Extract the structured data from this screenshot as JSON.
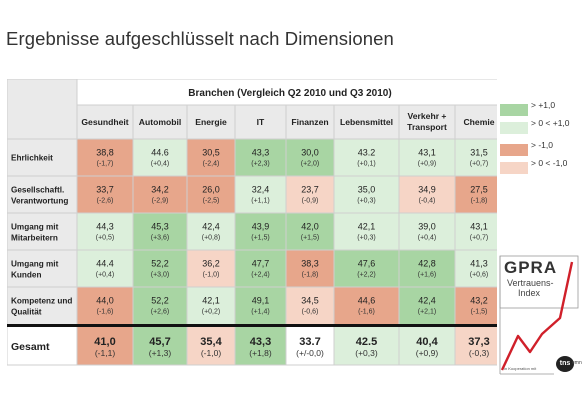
{
  "title": "Ergebnisse aufgeschlüsselt nach Dimensionen",
  "header_group": "Branchen (Vergleich Q2 2010 und Q3 2010)",
  "colors": {
    "strong_positive": "#a8d5a3",
    "mild_positive": "#dcefdb",
    "strong_negative": "#e7a68b",
    "mild_negative": "#f6d5c6",
    "neutral": "#ffffff",
    "header_bg": "#eaeaea"
  },
  "chart_data": {
    "type": "table",
    "columns": [
      "Gesundheit",
      "Automobil",
      "Energie",
      "IT",
      "Finanzen",
      "Lebensmittel",
      "Verkehr + Transport",
      "Chemie"
    ],
    "rows": [
      {
        "label": "Ehrlichkeit",
        "values": [
          "38,8",
          "44.6",
          "30,5",
          "43,3",
          "30,0",
          "43.2",
          "43,1",
          "31,5"
        ],
        "changes": [
          "(-1,7)",
          "(+0,4)",
          "(-2,4)",
          "(+2,3)",
          "(+2,0)",
          "(+0,1)",
          "(+0,9)",
          "(+0,7)"
        ],
        "shade": [
          "strong_negative",
          "mild_positive",
          "strong_negative",
          "strong_positive",
          "strong_positive",
          "mild_positive",
          "mild_positive",
          "mild_positive"
        ]
      },
      {
        "label": "Gesellschaftl. Verantwortung",
        "values": [
          "33,7",
          "34,2",
          "26,0",
          "32,4",
          "23,7",
          "35,0",
          "34,9",
          "27,5"
        ],
        "changes": [
          "(-2,6)",
          "(-2,9)",
          "(-2,5)",
          "(+1,1)",
          "(-0,9)",
          "(+0,3)",
          "(-0,4)",
          "(-1,8)"
        ],
        "shade": [
          "strong_negative",
          "strong_negative",
          "strong_negative",
          "mild_positive",
          "mild_negative",
          "mild_positive",
          "mild_negative",
          "strong_negative"
        ]
      },
      {
        "label": "Umgang mit Mitarbeitern",
        "values": [
          "44,3",
          "45,3",
          "42,4",
          "43,9",
          "42,0",
          "42,1",
          "39,0",
          "43,1"
        ],
        "changes": [
          "(+0,5)",
          "(+3,6)",
          "(+0,8)",
          "(+1,5)",
          "(+1,5)",
          "(+0,3)",
          "(+0,4)",
          "(+0,7)"
        ],
        "shade": [
          "mild_positive",
          "strong_positive",
          "mild_positive",
          "strong_positive",
          "strong_positive",
          "mild_positive",
          "mild_positive",
          "mild_positive"
        ]
      },
      {
        "label": "Umgang mit Kunden",
        "values": [
          "44.4",
          "52,2",
          "36,2",
          "47,7",
          "38,3",
          "47,6",
          "42,8",
          "41,3"
        ],
        "changes": [
          "(+0,4)",
          "(+3,0)",
          "(-1,0)",
          "(+2,4)",
          "(-1,8)",
          "(+2,2)",
          "(+1,6)",
          "(+0,6)"
        ],
        "shade": [
          "mild_positive",
          "strong_positive",
          "mild_negative",
          "strong_positive",
          "strong_negative",
          "strong_positive",
          "strong_positive",
          "mild_positive"
        ]
      },
      {
        "label": "Kompetenz und Qualität",
        "values": [
          "44,0",
          "52,2",
          "42,1",
          "49,1",
          "34,5",
          "44,6",
          "42,4",
          "43,2"
        ],
        "changes": [
          "(-1,6)",
          "(+2,6)",
          "(+0,2)",
          "(+1,4)",
          "(-0,6)",
          "(-1,6)",
          "(+2,1)",
          "(-1,5)"
        ],
        "shade": [
          "strong_negative",
          "strong_positive",
          "mild_positive",
          "strong_positive",
          "mild_negative",
          "strong_negative",
          "strong_positive",
          "strong_negative"
        ]
      },
      {
        "label": "Gesamt",
        "values": [
          "41,0",
          "45,7",
          "35,4",
          "43,3",
          "33.7",
          "42.5",
          "40,4",
          "37,3"
        ],
        "changes": [
          "(-1,1)",
          "(+1,3)",
          "(-1,0)",
          "(+1,8)",
          "(+/-0,0)",
          "(+0,3)",
          "(+0,9)",
          "(-0,3)"
        ],
        "shade": [
          "strong_negative",
          "strong_positive",
          "mild_negative",
          "strong_positive",
          "neutral",
          "mild_positive",
          "mild_positive",
          "mild_negative"
        ]
      }
    ]
  },
  "legend": [
    {
      "label": "> +1,0",
      "color": "strong_positive"
    },
    {
      "label": "> 0 < +1,0",
      "color": "mild_positive"
    },
    {
      "label": "> -1,0",
      "color": "strong_negative"
    },
    {
      "label": "> 0 < -1,0",
      "color": "mild_negative"
    }
  ],
  "logo": {
    "brand": "GPRA",
    "line1": "Vertrauens-",
    "line2": "Index",
    "koop": "in Kooperation mit",
    "tns": "tns",
    "emnid": "emnid"
  }
}
